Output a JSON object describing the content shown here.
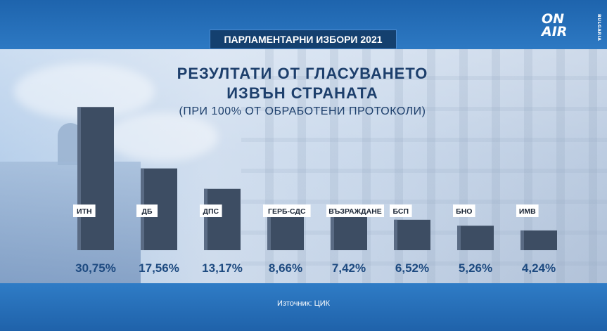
{
  "banner": "ПАРЛАМЕНТАРНИ ИЗБОРИ 2021",
  "logo": {
    "line1": "ON",
    "line2": "AIR",
    "sub": "BULGARIA"
  },
  "chart_data": {
    "type": "bar",
    "title": "РЕЗУЛТАТИ ОТ ГЛАСУВАНЕТО",
    "title2": "ИЗВЪН СТРАНАТА",
    "subtitle": "(ПРИ  100% ОТ ОБРАБОТЕНИ ПРОТОКОЛИ)",
    "categories": [
      "ИТН",
      "ДБ",
      "ДПС",
      "ГЕРБ-СДС",
      "ВЪЗРАЖДАНЕ",
      "БСП",
      "БНО",
      "ИМВ"
    ],
    "values": [
      30.75,
      17.56,
      13.17,
      8.66,
      7.42,
      6.52,
      5.26,
      4.24
    ],
    "value_labels": [
      "30,75%",
      "17,56%",
      "13,17%",
      "8,66%",
      "7,42%",
      "6,52%",
      "5,26%",
      "4,24%"
    ],
    "ylim": [
      0,
      32
    ],
    "bar_color": "#3d4d63"
  },
  "source": "Източник: ЦИК"
}
